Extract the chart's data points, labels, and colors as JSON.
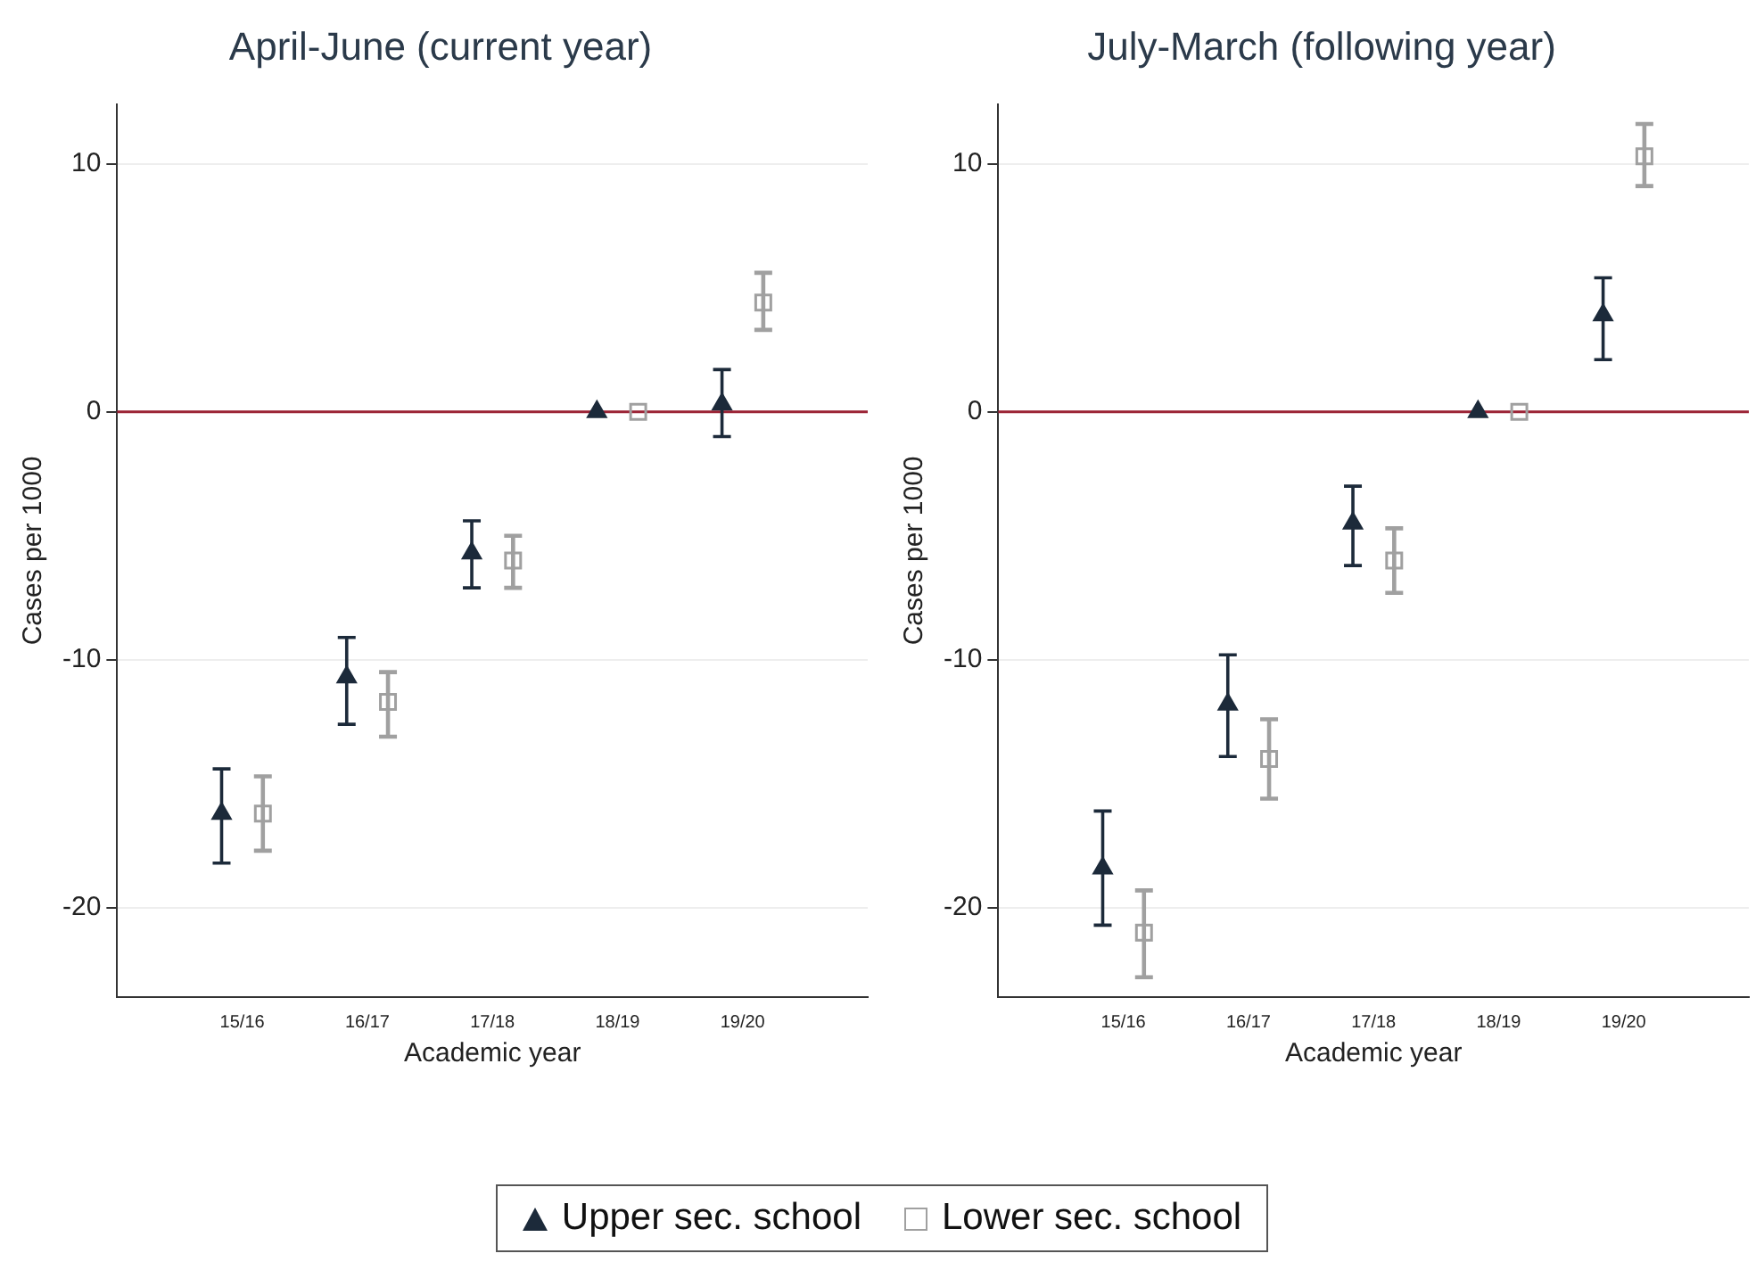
{
  "chart_data": [
    {
      "type": "scatter",
      "title": "April-June (current year)",
      "xlabel": "Academic year",
      "ylabel": "Cases per 1000",
      "categories": [
        "15/16",
        "16/17",
        "17/18",
        "18/19",
        "19/20"
      ],
      "ylim": [
        -23.6,
        12.4
      ],
      "yticks": [
        -20,
        -10,
        0,
        10
      ],
      "grid": "y",
      "legend": "bottom",
      "ref_lines": [
        {
          "axis": "y",
          "value": 0,
          "color": "#9b2335"
        }
      ],
      "series": [
        {
          "name": "Upper sec. school",
          "color": "#1c2a3a",
          "marker": "triangle",
          "values": [
            -16.2,
            -10.7,
            -5.7,
            0,
            0.3
          ],
          "errors": [
            [
              -18.2,
              -14.4
            ],
            [
              -12.6,
              -9.1
            ],
            [
              -7.1,
              -4.4
            ],
            null,
            [
              -1.0,
              1.7
            ]
          ]
        },
        {
          "name": "Lower sec. school",
          "color": "#a0a0a0",
          "marker": "square",
          "values": [
            -16.2,
            -11.7,
            -6.0,
            0,
            4.4
          ],
          "errors": [
            [
              -17.7,
              -14.7
            ],
            [
              -13.1,
              -10.5
            ],
            [
              -7.1,
              -5.0
            ],
            null,
            [
              3.3,
              5.6
            ]
          ]
        }
      ]
    },
    {
      "type": "scatter",
      "title": "July-March (following year)",
      "xlabel": "Academic year",
      "ylabel": "Cases per 1000",
      "categories": [
        "15/16",
        "16/17",
        "17/18",
        "18/19",
        "19/20"
      ],
      "ylim": [
        -23.6,
        12.4
      ],
      "yticks": [
        -20,
        -10,
        0,
        10
      ],
      "grid": "y",
      "ref_lines": [
        {
          "axis": "y",
          "value": 0,
          "color": "#9b2335"
        }
      ],
      "series": [
        {
          "color": "#1c2a3a",
          "marker": "triangle",
          "values": [
            -18.4,
            -11.8,
            -4.5,
            0,
            3.9
          ],
          "errors": [
            [
              -20.7,
              -16.1
            ],
            [
              -13.9,
              -9.8
            ],
            [
              -6.2,
              -3.0
            ],
            null,
            [
              2.1,
              5.4
            ]
          ]
        },
        {
          "color": "#a0a0a0",
          "marker": "square",
          "values": [
            -21.0,
            -14.0,
            -6.0,
            0,
            10.3
          ],
          "errors": [
            [
              -22.8,
              -19.3
            ],
            [
              -15.6,
              -12.4
            ],
            [
              -7.3,
              -4.7
            ],
            null,
            [
              9.1,
              11.6
            ]
          ]
        }
      ]
    }
  ]
}
